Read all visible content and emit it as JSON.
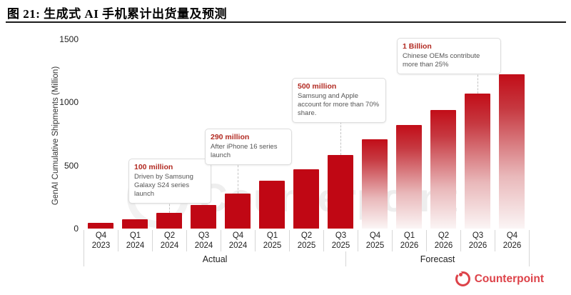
{
  "figure": {
    "title": "图 21:  生成式 AI 手机累计出货量及预测"
  },
  "chart_data": {
    "type": "bar",
    "title": "",
    "xlabel": "",
    "ylabel": "GenAI Cumulative Shipments (Million)",
    "unit": "Million",
    "ylim": [
      0,
      1500
    ],
    "yticks": [
      "0",
      "500",
      "1000",
      "1500"
    ],
    "grid": false,
    "legend_position": "none",
    "bar_color": "#c00714",
    "forecast_gradient": [
      "#c20d18",
      "#fbf5f5"
    ],
    "bars": [
      {
        "quarter": "Q4",
        "year": "2023",
        "value": 45,
        "group": "Actual"
      },
      {
        "quarter": "Q1",
        "year": "2024",
        "value": 75,
        "group": "Actual"
      },
      {
        "quarter": "Q2",
        "year": "2024",
        "value": 125,
        "group": "Actual"
      },
      {
        "quarter": "Q3",
        "year": "2024",
        "value": 185,
        "group": "Actual"
      },
      {
        "quarter": "Q4",
        "year": "2024",
        "value": 280,
        "group": "Actual"
      },
      {
        "quarter": "Q1",
        "year": "2025",
        "value": 380,
        "group": "Actual"
      },
      {
        "quarter": "Q2",
        "year": "2025",
        "value": 470,
        "group": "Actual"
      },
      {
        "quarter": "Q3",
        "year": "2025",
        "value": 585,
        "group": "Actual"
      },
      {
        "quarter": "Q4",
        "year": "2025",
        "value": 705,
        "group": "Forecast"
      },
      {
        "quarter": "Q1",
        "year": "2026",
        "value": 820,
        "group": "Forecast"
      },
      {
        "quarter": "Q2",
        "year": "2026",
        "value": 940,
        "group": "Forecast"
      },
      {
        "quarter": "Q3",
        "year": "2026",
        "value": 1070,
        "group": "Forecast"
      },
      {
        "quarter": "Q4",
        "year": "2026",
        "value": 1225,
        "group": "Forecast"
      }
    ],
    "groups": [
      {
        "label": "Actual",
        "count": 8
      },
      {
        "label": "Forecast",
        "count": 5
      }
    ]
  },
  "annotations": [
    {
      "heading": "100 million",
      "body": "Driven by Samsung Galaxy S24 series launch",
      "target": "Q2 2024",
      "heading_color": "#b22a22"
    },
    {
      "heading": "290 million",
      "body": "After iPhone 16 series launch",
      "target": "Q4 2024",
      "heading_color": "#b22a22"
    },
    {
      "heading": "500 million",
      "body": "Samsung and Apple account for more than 70% share.",
      "target": "Q3 2025",
      "heading_color": "#b22a22"
    },
    {
      "heading": "1 Billion",
      "body": "Chinese OEMs contribute more than 25%",
      "target": "Q3 2026",
      "heading_color": "#b22a22"
    }
  ],
  "watermark": {
    "text": "Counterpoint"
  },
  "brand": {
    "label": "Counterpoint",
    "color": "#dd4249"
  }
}
